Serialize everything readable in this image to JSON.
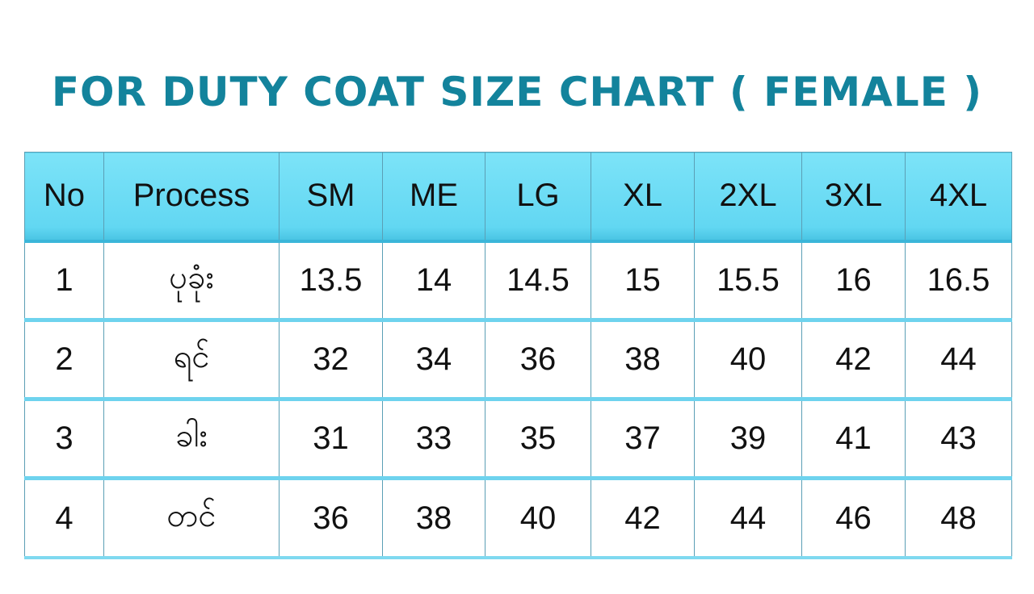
{
  "title": "For Duty Coat Size Chart ( Female )",
  "colors": {
    "title": "#13839c",
    "header_bg": "#6ddcf5",
    "row_divider": "#6ed3ee",
    "grid_line": "#5b9fb5"
  },
  "chart_data": {
    "type": "table",
    "title": "For Duty Coat Size Chart ( Female )",
    "columns": [
      "No",
      "Process",
      "SM",
      "ME",
      "LG",
      "XL",
      "2XL",
      "3XL",
      "4XL"
    ],
    "rows": [
      [
        "1",
        "ပုခုံး",
        "13.5",
        "14",
        "14.5",
        "15",
        "15.5",
        "16",
        "16.5"
      ],
      [
        "2",
        "ရင်",
        "32",
        "34",
        "36",
        "38",
        "40",
        "42",
        "44"
      ],
      [
        "3",
        "ခါး",
        "31",
        "33",
        "35",
        "37",
        "39",
        "41",
        "43"
      ],
      [
        "4",
        "တင်",
        "36",
        "38",
        "40",
        "42",
        "44",
        "46",
        "48"
      ]
    ]
  }
}
